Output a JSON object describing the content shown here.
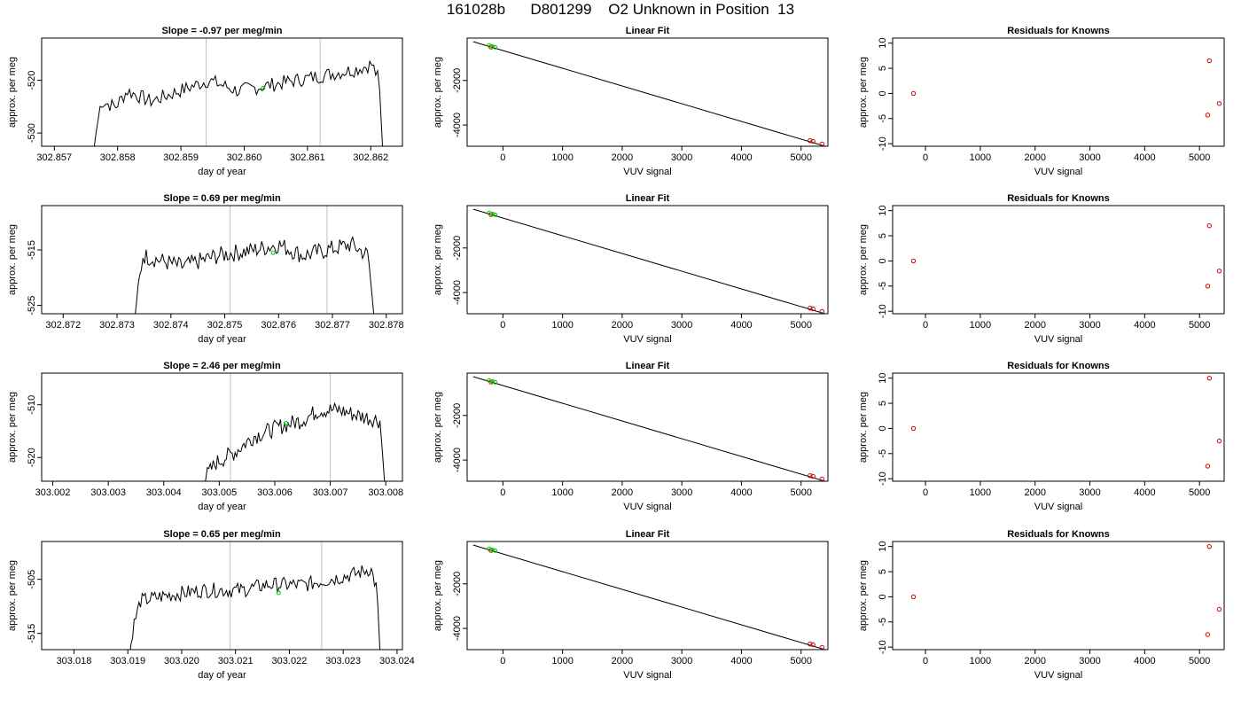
{
  "title": "161028b      D801299    O2 Unknown in Position  13",
  "colors": {
    "line": "#000000",
    "known": "#cc0000",
    "unknown": "#00cc00",
    "marker": "#bfbfbf"
  },
  "chart_data": [
    {
      "type": "line",
      "title": "Slope =  -0.97  per meg/min",
      "xlabel": "day of year",
      "ylabel": "approx. per meg",
      "xlim": [
        302.8568,
        302.8625
      ],
      "ylim": [
        -532.5,
        -512
      ],
      "xticks": [
        "302.857",
        "302.858",
        "302.859",
        "302.860",
        "302.861",
        "302.862"
      ],
      "xtick_values": [
        302.857,
        302.858,
        302.859,
        302.86,
        302.861,
        302.862
      ],
      "yticks": [
        "-530",
        "-520"
      ],
      "ytick_values": [
        -530,
        -520
      ],
      "vlines": [
        302.8594,
        302.8612
      ],
      "series": [
        {
          "x_start": 302.8576,
          "x_end": 302.8622,
          "n": 150,
          "shape": [
            [
              0,
              -536
            ],
            [
              0.01,
              -531
            ],
            [
              0.03,
              -524
            ],
            [
              0.08,
              -525
            ],
            [
              0.12,
              -522
            ],
            [
              0.2,
              -524
            ],
            [
              0.25,
              -523
            ],
            [
              0.35,
              -521
            ],
            [
              0.4,
              -520
            ],
            [
              0.5,
              -522
            ],
            [
              0.6,
              -521
            ],
            [
              0.7,
              -520
            ],
            [
              0.8,
              -519
            ],
            [
              0.9,
              -518
            ],
            [
              0.96,
              -517
            ],
            [
              0.985,
              -520
            ],
            [
              1,
              -536
            ]
          ],
          "amplitude": 1.4
        }
      ],
      "unknown_point": {
        "x": 302.8603,
        "y": -521.5
      }
    },
    {
      "type": "scatter",
      "title": "Linear Fit",
      "xlabel": "VUV signal",
      "ylabel": "approx. per meg",
      "xlim": [
        -600,
        5450
      ],
      "ylim": [
        -4950,
        -100
      ],
      "xticks": [
        "0",
        "1000",
        "2000",
        "3000",
        "4000",
        "5000"
      ],
      "xtick_values": [
        0,
        1000,
        2000,
        3000,
        4000,
        5000
      ],
      "yticks": [
        "-4000",
        "-2000"
      ],
      "ytick_values": [
        -4000,
        -2000
      ],
      "fit_line": [
        [
          -500,
          -260
        ],
        [
          5400,
          -4950
        ]
      ],
      "known_points": [
        [
          -200,
          -500
        ],
        [
          5150,
          -4700
        ],
        [
          5200,
          -4730
        ],
        [
          5350,
          -4850
        ]
      ],
      "unknown_points": [
        [
          -230,
          -430
        ],
        [
          -170,
          -480
        ],
        [
          -130,
          -510
        ]
      ]
    },
    {
      "type": "scatter",
      "title": "Residuals for Knowns",
      "xlabel": "VUV signal",
      "ylabel": "approx. per meg",
      "xlim": [
        -600,
        5450
      ],
      "ylim": [
        -10.5,
        11
      ],
      "xticks": [
        "0",
        "1000",
        "2000",
        "3000",
        "4000",
        "5000"
      ],
      "xtick_values": [
        0,
        1000,
        2000,
        3000,
        4000,
        5000
      ],
      "yticks": [
        "-10",
        "-5",
        "0",
        "5",
        "10"
      ],
      "ytick_values": [
        -10,
        -5,
        0,
        5,
        10
      ],
      "known_points": [
        [
          -220,
          0
        ],
        [
          5180,
          6.5
        ],
        [
          5150,
          -4.3
        ],
        [
          5360,
          -2
        ]
      ]
    },
    {
      "type": "line",
      "title": "Slope =  0.69  per meg/min",
      "xlabel": "day of year",
      "ylabel": "approx. per meg",
      "xlim": [
        302.8716,
        302.8783
      ],
      "ylim": [
        -526.5,
        -507
      ],
      "xticks": [
        "302.872",
        "302.873",
        "302.874",
        "302.875",
        "302.876",
        "302.877",
        "302.878"
      ],
      "xtick_values": [
        302.872,
        302.873,
        302.874,
        302.875,
        302.876,
        302.877,
        302.878
      ],
      "yticks": [
        "-525",
        "-515"
      ],
      "ytick_values": [
        -525,
        -515
      ],
      "vlines": [
        302.8751,
        302.8769
      ],
      "series": [
        {
          "x_start": 302.8733,
          "x_end": 302.8778,
          "n": 150,
          "shape": [
            [
              0,
              -530
            ],
            [
              0.02,
              -522
            ],
            [
              0.04,
              -516
            ],
            [
              0.2,
              -518
            ],
            [
              0.35,
              -516
            ],
            [
              0.5,
              -515
            ],
            [
              0.6,
              -514
            ],
            [
              0.7,
              -516
            ],
            [
              0.8,
              -515
            ],
            [
              0.9,
              -514
            ],
            [
              0.97,
              -516
            ],
            [
              1,
              -530
            ]
          ],
          "amplitude": 1.6
        }
      ],
      "unknown_point": {
        "x": 302.8759,
        "y": -515.5
      }
    },
    {
      "type": "scatter",
      "title": "Linear Fit",
      "xlabel": "VUV signal",
      "ylabel": "approx. per meg",
      "xlim": [
        -600,
        5450
      ],
      "ylim": [
        -4950,
        -100
      ],
      "xticks": [
        "0",
        "1000",
        "2000",
        "3000",
        "4000",
        "5000"
      ],
      "xtick_values": [
        0,
        1000,
        2000,
        3000,
        4000,
        5000
      ],
      "yticks": [
        "-4000",
        "-2000"
      ],
      "ytick_values": [
        -4000,
        -2000
      ],
      "fit_line": [
        [
          -500,
          -260
        ],
        [
          5400,
          -4950
        ]
      ],
      "known_points": [
        [
          -200,
          -500
        ],
        [
          5150,
          -4700
        ],
        [
          5200,
          -4730
        ],
        [
          5350,
          -4850
        ]
      ],
      "unknown_points": [
        [
          -230,
          -430
        ],
        [
          -170,
          -480
        ],
        [
          -130,
          -510
        ]
      ]
    },
    {
      "type": "scatter",
      "title": "Residuals for Knowns",
      "xlabel": "VUV signal",
      "ylabel": "approx. per meg",
      "xlim": [
        -600,
        5450
      ],
      "ylim": [
        -10.5,
        11
      ],
      "xticks": [
        "0",
        "1000",
        "2000",
        "3000",
        "4000",
        "5000"
      ],
      "xtick_values": [
        0,
        1000,
        2000,
        3000,
        4000,
        5000
      ],
      "yticks": [
        "-10",
        "-5",
        "0",
        "5",
        "10"
      ],
      "ytick_values": [
        -10,
        -5,
        0,
        5,
        10
      ],
      "known_points": [
        [
          -220,
          0
        ],
        [
          5180,
          7
        ],
        [
          5150,
          -5
        ],
        [
          5360,
          -2
        ]
      ]
    },
    {
      "type": "line",
      "title": "Slope =  2.46  per meg/min",
      "xlabel": "day of year",
      "ylabel": "approx. per meg",
      "xlim": [
        303.0018,
        303.0083
      ],
      "ylim": [
        -524.5,
        -504
      ],
      "xticks": [
        "303.002",
        "303.003",
        "303.004",
        "303.005",
        "303.006",
        "303.007",
        "303.008"
      ],
      "xtick_values": [
        303.002,
        303.003,
        303.004,
        303.005,
        303.006,
        303.007,
        303.008
      ],
      "yticks": [
        "-520",
        "-510"
      ],
      "ytick_values": [
        -520,
        -510
      ],
      "vlines": [
        303.0052,
        303.007
      ],
      "series": [
        {
          "x_start": 303.0046,
          "x_end": 303.008,
          "n": 130,
          "shape": [
            [
              0,
              -526
            ],
            [
              0.1,
              -521
            ],
            [
              0.2,
              -519
            ],
            [
              0.3,
              -516
            ],
            [
              0.45,
              -514
            ],
            [
              0.55,
              -513
            ],
            [
              0.65,
              -511
            ],
            [
              0.75,
              -511
            ],
            [
              0.85,
              -512
            ],
            [
              0.97,
              -513
            ],
            [
              1,
              -528
            ]
          ],
          "amplitude": 1.6
        }
      ],
      "unknown_point": {
        "x": 303.0062,
        "y": -513.5
      }
    },
    {
      "type": "scatter",
      "title": "Linear Fit",
      "xlabel": "VUV signal",
      "ylabel": "approx. per meg",
      "xlim": [
        -600,
        5450
      ],
      "ylim": [
        -4950,
        -100
      ],
      "xticks": [
        "0",
        "1000",
        "2000",
        "3000",
        "4000",
        "5000"
      ],
      "xtick_values": [
        0,
        1000,
        2000,
        3000,
        4000,
        5000
      ],
      "yticks": [
        "-4000",
        "-2000"
      ],
      "ytick_values": [
        -4000,
        -2000
      ],
      "fit_line": [
        [
          -500,
          -260
        ],
        [
          5400,
          -4950
        ]
      ],
      "known_points": [
        [
          -200,
          -500
        ],
        [
          5150,
          -4700
        ],
        [
          5200,
          -4730
        ],
        [
          5350,
          -4850
        ]
      ],
      "unknown_points": [
        [
          -230,
          -430
        ],
        [
          -170,
          -480
        ],
        [
          -130,
          -510
        ]
      ]
    },
    {
      "type": "scatter",
      "title": "Residuals for Knowns",
      "xlabel": "VUV signal",
      "ylabel": "approx. per meg",
      "xlim": [
        -600,
        5450
      ],
      "ylim": [
        -10.5,
        11
      ],
      "xticks": [
        "0",
        "1000",
        "2000",
        "3000",
        "4000",
        "5000"
      ],
      "xtick_values": [
        0,
        1000,
        2000,
        3000,
        4000,
        5000
      ],
      "yticks": [
        "-10",
        "-5",
        "0",
        "5",
        "10"
      ],
      "ytick_values": [
        -10,
        -5,
        0,
        5,
        10
      ],
      "known_points": [
        [
          -220,
          0
        ],
        [
          5180,
          10
        ],
        [
          5150,
          -7.5
        ],
        [
          5360,
          -2.5
        ]
      ]
    },
    {
      "type": "line",
      "title": "Slope =  0.65  per meg/min",
      "xlabel": "day of year",
      "ylabel": "approx. per meg",
      "xlim": [
        303.0174,
        303.0241
      ],
      "ylim": [
        -518,
        -498
      ],
      "xticks": [
        "303.018",
        "303.019",
        "303.020",
        "303.021",
        "303.022",
        "303.023",
        "303.024"
      ],
      "xtick_values": [
        303.018,
        303.019,
        303.02,
        303.021,
        303.022,
        303.023,
        303.024
      ],
      "yticks": [
        "-515",
        "-505"
      ],
      "ytick_values": [
        -515,
        -505
      ],
      "vlines": [
        303.0209,
        303.0226
      ],
      "series": [
        {
          "x_start": 303.019,
          "x_end": 303.0237,
          "n": 160,
          "shape": [
            [
              0,
              -522
            ],
            [
              0.02,
              -514
            ],
            [
              0.05,
              -509
            ],
            [
              0.15,
              -508
            ],
            [
              0.3,
              -507
            ],
            [
              0.45,
              -507
            ],
            [
              0.55,
              -506
            ],
            [
              0.7,
              -506
            ],
            [
              0.8,
              -505
            ],
            [
              0.9,
              -504
            ],
            [
              0.96,
              -503
            ],
            [
              0.985,
              -507
            ],
            [
              1,
              -522
            ]
          ],
          "amplitude": 1.4
        }
      ],
      "unknown_point": {
        "x": 303.0218,
        "y": -507.5
      }
    },
    {
      "type": "scatter",
      "title": "Linear Fit",
      "xlabel": "VUV signal",
      "ylabel": "approx. per meg",
      "xlim": [
        -600,
        5450
      ],
      "ylim": [
        -4950,
        -100
      ],
      "xticks": [
        "0",
        "1000",
        "2000",
        "3000",
        "4000",
        "5000"
      ],
      "xtick_values": [
        0,
        1000,
        2000,
        3000,
        4000,
        5000
      ],
      "yticks": [
        "-4000",
        "-2000"
      ],
      "ytick_values": [
        -4000,
        -2000
      ],
      "fit_line": [
        [
          -500,
          -260
        ],
        [
          5400,
          -4950
        ]
      ],
      "known_points": [
        [
          -200,
          -500
        ],
        [
          5150,
          -4700
        ],
        [
          5200,
          -4730
        ],
        [
          5350,
          -4850
        ]
      ],
      "unknown_points": [
        [
          -230,
          -430
        ],
        [
          -170,
          -480
        ],
        [
          -130,
          -510
        ]
      ]
    },
    {
      "type": "scatter",
      "title": "Residuals for Knowns",
      "xlabel": "VUV signal",
      "ylabel": "approx. per meg",
      "xlim": [
        -600,
        5450
      ],
      "ylim": [
        -10.5,
        11
      ],
      "xticks": [
        "0",
        "1000",
        "2000",
        "3000",
        "4000",
        "5000"
      ],
      "xtick_values": [
        0,
        1000,
        2000,
        3000,
        4000,
        5000
      ],
      "yticks": [
        "-10",
        "-5",
        "0",
        "5",
        "10"
      ],
      "ytick_values": [
        -10,
        -5,
        0,
        5,
        10
      ],
      "known_points": [
        [
          -220,
          0
        ],
        [
          5180,
          10
        ],
        [
          5150,
          -7.5
        ],
        [
          5360,
          -2.5
        ]
      ]
    }
  ]
}
